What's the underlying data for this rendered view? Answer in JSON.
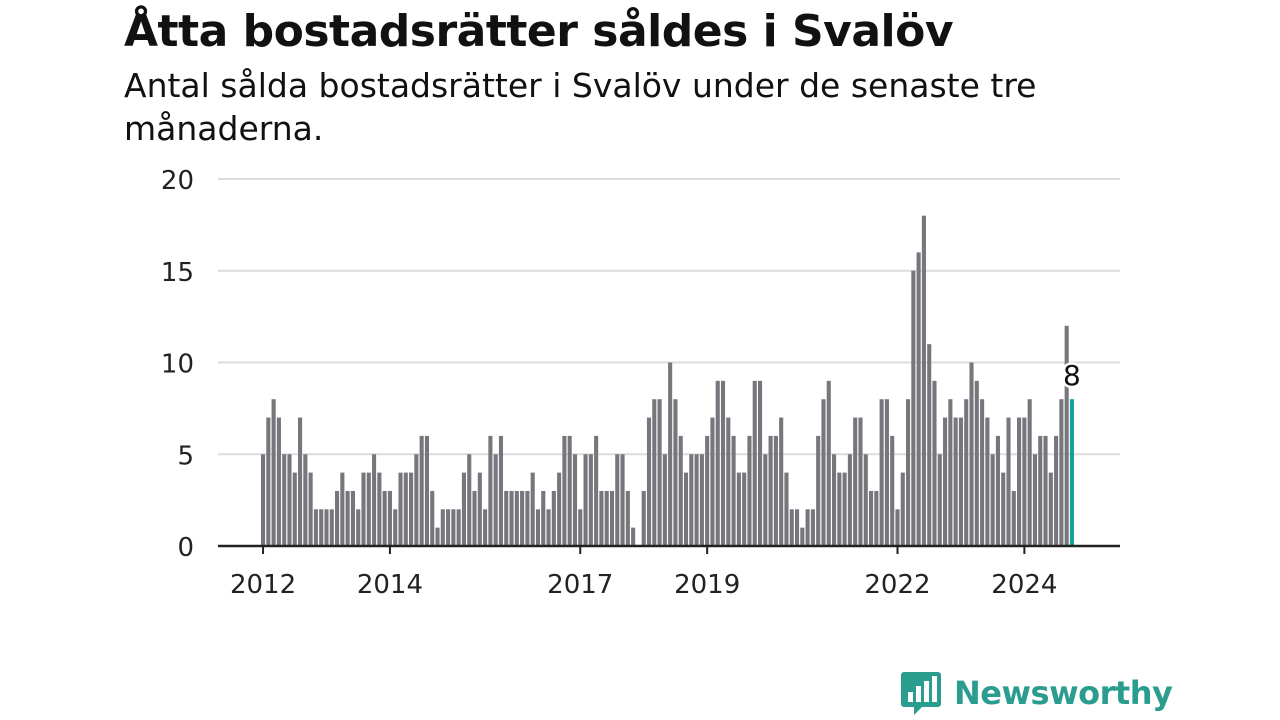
{
  "chart_data": {
    "type": "bar",
    "title": "Åtta bostadsrätter såldes i Svalöv",
    "subtitle": "Antal sålda bostadsrätter i Svalöv under de senaste tre månaderna.",
    "xlabel": "",
    "ylabel": "",
    "ylim": [
      0,
      20
    ],
    "yticks": [
      0,
      5,
      10,
      15,
      20
    ],
    "grid": true,
    "x_start": "2012-01",
    "x_ticks": [
      {
        "label": "2012",
        "date": "2012-01"
      },
      {
        "label": "2014",
        "date": "2014-01"
      },
      {
        "label": "2017",
        "date": "2017-01"
      },
      {
        "label": "2019",
        "date": "2019-01"
      },
      {
        "label": "2022",
        "date": "2022-01"
      },
      {
        "label": "2024",
        "date": "2024-01"
      }
    ],
    "values": [
      5,
      7,
      8,
      7,
      5,
      5,
      4,
      7,
      5,
      4,
      2,
      2,
      2,
      2,
      3,
      4,
      3,
      3,
      2,
      4,
      4,
      5,
      4,
      3,
      3,
      2,
      4,
      4,
      4,
      5,
      6,
      6,
      3,
      1,
      2,
      2,
      2,
      2,
      4,
      5,
      3,
      4,
      2,
      6,
      5,
      6,
      3,
      3,
      3,
      3,
      3,
      4,
      2,
      3,
      2,
      3,
      4,
      6,
      6,
      5,
      2,
      5,
      5,
      6,
      3,
      3,
      3,
      5,
      5,
      3,
      1,
      0,
      3,
      7,
      8,
      8,
      5,
      10,
      8,
      6,
      4,
      5,
      5,
      5,
      6,
      7,
      9,
      9,
      7,
      6,
      4,
      4,
      6,
      9,
      9,
      5,
      6,
      6,
      7,
      4,
      2,
      2,
      1,
      2,
      2,
      6,
      8,
      9,
      5,
      4,
      4,
      5,
      7,
      7,
      5,
      3,
      3,
      8,
      8,
      6,
      2,
      4,
      8,
      15,
      16,
      18,
      11,
      9,
      5,
      7,
      8,
      7,
      7,
      8,
      10,
      9,
      8,
      7,
      5,
      6,
      4,
      7,
      3,
      7,
      7,
      8,
      5,
      6,
      6,
      4,
      6,
      8,
      12,
      8
    ],
    "highlight": {
      "value": 8,
      "label": "8",
      "color": "#1a9e98"
    },
    "bar_color": "#76767c"
  },
  "brand": {
    "name": "Newsworthy",
    "color": "#2a9d8f"
  }
}
